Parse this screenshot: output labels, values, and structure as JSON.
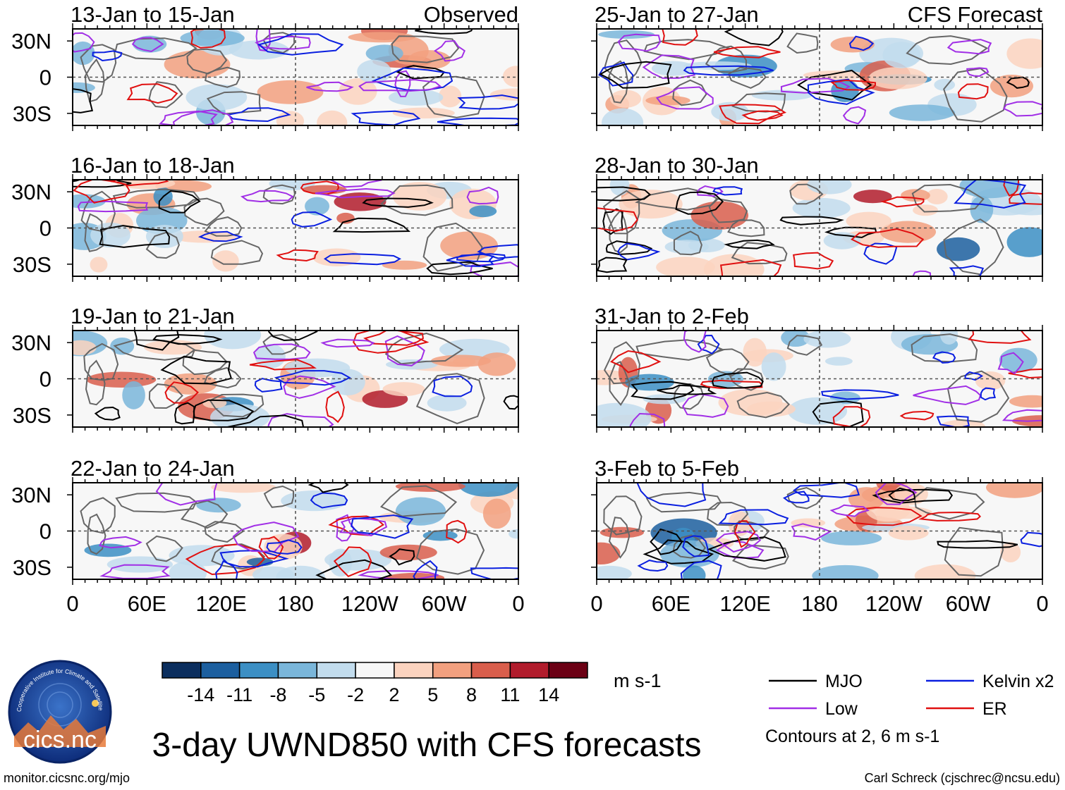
{
  "chart_data": {
    "type": "heatmap",
    "title": "3-day UWND850 with CFS forecasts",
    "variable": "UWND850",
    "units": "m s-1",
    "x_tick_labels": [
      "0",
      "60E",
      "120E",
      "180",
      "120W",
      "60W",
      "0"
    ],
    "y_tick_labels": [
      "30N",
      "0",
      "30S"
    ],
    "xlim_deg_east": [
      0,
      360
    ],
    "ylim_deg": [
      -40,
      40
    ],
    "columns": [
      {
        "name": "Observed",
        "header": "Observed"
      },
      {
        "name": "CFS Forecast",
        "header": "CFS Forecast"
      }
    ],
    "panels": [
      {
        "column": 0,
        "row": 0,
        "period": "13-Jan to 15-Jan"
      },
      {
        "column": 0,
        "row": 1,
        "period": "16-Jan to 18-Jan"
      },
      {
        "column": 0,
        "row": 2,
        "period": "19-Jan to 21-Jan"
      },
      {
        "column": 0,
        "row": 3,
        "period": "22-Jan to 24-Jan"
      },
      {
        "column": 1,
        "row": 0,
        "period": "25-Jan to 27-Jan"
      },
      {
        "column": 1,
        "row": 1,
        "period": "28-Jan to 30-Jan"
      },
      {
        "column": 1,
        "row": 2,
        "period": "31-Jan to 2-Feb"
      },
      {
        "column": 1,
        "row": 3,
        "period": "3-Feb to 5-Feb"
      }
    ],
    "colorbar": {
      "labels": [
        "-14",
        "-11",
        "-8",
        "-5",
        "-2",
        "2",
        "5",
        "8",
        "11",
        "14"
      ],
      "colors": [
        "#0b2e5e",
        "#1c5f9f",
        "#3c8fc4",
        "#7ab6da",
        "#c2dced",
        "#f7f7f7",
        "#fbd3bf",
        "#f2a07f",
        "#d95e4c",
        "#b11c2c",
        "#6b0014"
      ],
      "units": "m s-1"
    },
    "legend": [
      {
        "name": "MJO",
        "color": "#000000"
      },
      {
        "name": "Low",
        "color": "#a12fe6"
      },
      {
        "name": "Kelvin x2",
        "color": "#0a1fe0"
      },
      {
        "name": "ER",
        "color": "#e01010"
      }
    ],
    "contour_note": "Contours at 2, 6 m s-1"
  },
  "footer": {
    "logo_text": "cics.nc",
    "logo_ring_text": "Cooperative Institute for Climate and Satellites",
    "url": "monitor.cicsnc.org/mjo",
    "credit": "Carl Schreck (cjschrec@ncsu.edu)"
  }
}
